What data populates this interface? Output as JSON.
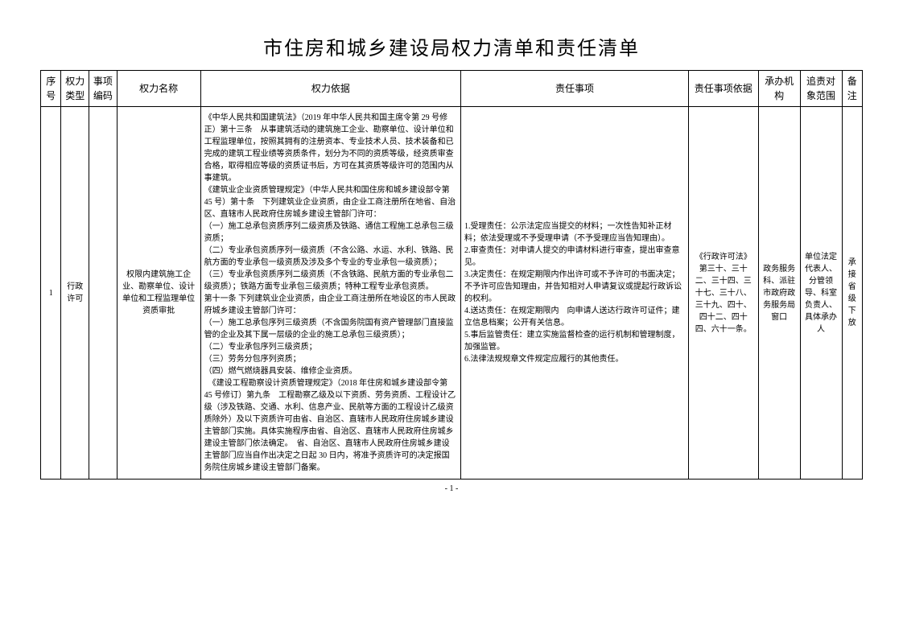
{
  "title": "市住房和城乡建设局权力清单和责任清单",
  "headers": {
    "seq": "序号",
    "type": "权力类型",
    "code": "事项编码",
    "name": "权力名称",
    "basis": "权力依据",
    "duty": "责任事项",
    "duty_basis": "责任事项依据",
    "agency": "承办机构",
    "scope": "追责对象范围",
    "note": "备注"
  },
  "row": {
    "seq": "1",
    "type": "行政许可",
    "code": "",
    "name": "权限内建筑施工企业、勘察单位、设计单位和工程监理单位资质审批",
    "basis": "《中华人民共和国建筑法》（2019 年中华人民共和国主席令第 29 号修正）第十三条　从事建筑活动的建筑施工企业、勘察单位、设计单位和工程监理单位，按照其拥有的注册资本、专业技术人员、技术装备和已完成的建筑工程业绩等资质条件，划分为不同的资质等级，经资质审查合格，取得相应等级的资质证书后，方可在其资质等级许可的范围内从事建筑。\n《建筑业企业资质管理规定》（中华人民共和国住房和城乡建设部令第 45 号）第十条　下列建筑业企业资质，由企业工商注册所在地省、自治区、直辖市人民政府住房城乡建设主管部门许可：\n（一）施工总承包资质序列二级资质及铁路、通信工程施工总承包三级资质；\n（二）专业承包资质序列一级资质（不含公路、水运、水利、铁路、民航方面的专业承包一级资质及涉及多个专业的专业承包一级资质）；\n（三）专业承包资质序列二级资质（不含铁路、民航方面的专业承包二级资质）；铁路方面专业承包三级资质；特种工程专业承包资质。\n第十一条 下列建筑业企业资质，由企业工商注册所在地设区的市人民政府城乡建设主管部门许可：\n（一）施工总承包序列三级资质（不含国务院国有资产管理部门直接监管的企业及其下属一层级的企业的施工总承包三级资质）；\n（二）专业承包序列三级资质；\n（三）劳务分包序列资质；\n（四）燃气燃烧器具安装、维修企业资质。\n　《建设工程勘察设计资质管理规定》（2018 年住房和城乡建设部令第 45 号修订）第九条　工程勘察乙级及以下资质、劳务资质、工程设计乙级（涉及铁路、交通、水利、信息产业、民航等方面的工程设计乙级资质除外）及以下资质许可由省、自治区、直辖市人民政府住房城乡建设主管部门实施。具体实施程序由省、自治区、直辖市人民政府住房城乡建设主管部门依法确定。　省、自治区、直辖市人民政府住房城乡建设主管部门应当自作出决定之日起 30 日内，将准予资质许可的决定报国务院住房城乡建设主管部门备案。",
    "duty": "1.受理责任：公示法定应当提交的材料；一次性告知补正材料；依法受理或不予受理申请（不予受理应当告知理由）。\n2.审查责任：对申请人提交的申请材料进行审查，提出审查意见。\n3.决定责任：在规定期限内作出许可或不予许可的书面决定；不予许可应告知理由，并告知相对人申请复议或提起行政诉讼的权利。\n4.送达责任：在规定期限内　向申请人送达行政许可证件；建立信息档案；公开有关信息。\n5.事后监管责任：建立实施监督检查的运行机制和管理制度，加强监管。\n6.法律法规规章文件规定应履行的其他责任。",
    "duty_basis": "《行政许可法》第三十、三十二、三十四、三十七、三十八、三十九、四十、四十二、四十四、六十一条。",
    "agency": "政务服务科、派驻市政府政务服务局窗口",
    "scope": "单位法定代表人、分管领导、科室负责人、具体承办人",
    "note": "承接省级下放"
  },
  "footer": "- 1 -"
}
